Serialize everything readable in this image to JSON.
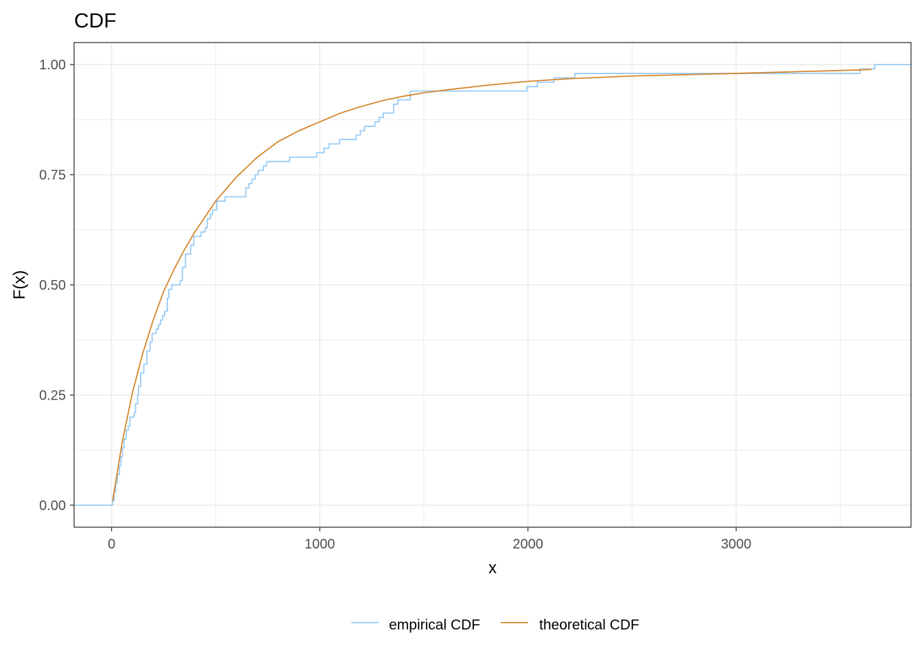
{
  "chart_data": {
    "type": "line",
    "title": "CDF",
    "xlabel": "x",
    "ylabel": "F(x)",
    "xlim": [
      -180,
      3840
    ],
    "ylim": [
      -0.05,
      1.05
    ],
    "x_ticks": [
      0,
      1000,
      2000,
      3000
    ],
    "x_tick_labels": [
      "0",
      "1000",
      "2000",
      "3000"
    ],
    "y_ticks": [
      0,
      0.25,
      0.5,
      0.75,
      1.0
    ],
    "y_tick_labels": [
      "0.00",
      "0.25",
      "0.50",
      "0.75",
      "1.00"
    ],
    "grid": true,
    "legend_position": "bottom",
    "series": [
      {
        "name": "empirical CDF",
        "color": "#99ccf5",
        "step": true,
        "points": [
          [
            -180,
            0
          ],
          [
            5,
            0.01
          ],
          [
            12,
            0.03
          ],
          [
            20,
            0.05
          ],
          [
            28,
            0.07
          ],
          [
            38,
            0.09
          ],
          [
            45,
            0.11
          ],
          [
            52,
            0.13
          ],
          [
            60,
            0.15
          ],
          [
            70,
            0.17
          ],
          [
            80,
            0.18
          ],
          [
            88,
            0.2
          ],
          [
            108,
            0.21
          ],
          [
            115,
            0.23
          ],
          [
            125,
            0.25
          ],
          [
            130,
            0.27
          ],
          [
            140,
            0.3
          ],
          [
            155,
            0.32
          ],
          [
            170,
            0.35
          ],
          [
            185,
            0.37
          ],
          [
            195,
            0.39
          ],
          [
            215,
            0.4
          ],
          [
            225,
            0.41
          ],
          [
            235,
            0.42
          ],
          [
            245,
            0.43
          ],
          [
            255,
            0.44
          ],
          [
            268,
            0.47
          ],
          [
            275,
            0.49
          ],
          [
            290,
            0.5
          ],
          [
            330,
            0.51
          ],
          [
            340,
            0.54
          ],
          [
            355,
            0.57
          ],
          [
            380,
            0.59
          ],
          [
            395,
            0.61
          ],
          [
            430,
            0.62
          ],
          [
            450,
            0.63
          ],
          [
            460,
            0.65
          ],
          [
            475,
            0.66
          ],
          [
            485,
            0.67
          ],
          [
            505,
            0.69
          ],
          [
            545,
            0.7
          ],
          [
            645,
            0.72
          ],
          [
            660,
            0.73
          ],
          [
            675,
            0.74
          ],
          [
            690,
            0.75
          ],
          [
            705,
            0.76
          ],
          [
            730,
            0.77
          ],
          [
            745,
            0.78
          ],
          [
            855,
            0.79
          ],
          [
            985,
            0.8
          ],
          [
            1020,
            0.81
          ],
          [
            1045,
            0.82
          ],
          [
            1095,
            0.83
          ],
          [
            1175,
            0.84
          ],
          [
            1195,
            0.85
          ],
          [
            1215,
            0.86
          ],
          [
            1265,
            0.87
          ],
          [
            1285,
            0.88
          ],
          [
            1305,
            0.89
          ],
          [
            1355,
            0.91
          ],
          [
            1375,
            0.92
          ],
          [
            1435,
            0.94
          ],
          [
            1995,
            0.95
          ],
          [
            2045,
            0.96
          ],
          [
            2125,
            0.97
          ],
          [
            2225,
            0.98
          ],
          [
            3595,
            0.99
          ],
          [
            3665,
            1.0
          ],
          [
            3840,
            1.0
          ]
        ]
      },
      {
        "name": "theoretical CDF",
        "color": "#d4852c",
        "step": false,
        "points": [
          [
            5,
            0.01
          ],
          [
            50,
            0.14
          ],
          [
            100,
            0.255
          ],
          [
            150,
            0.345
          ],
          [
            200,
            0.42
          ],
          [
            250,
            0.485
          ],
          [
            300,
            0.535
          ],
          [
            350,
            0.58
          ],
          [
            400,
            0.62
          ],
          [
            450,
            0.655
          ],
          [
            500,
            0.69
          ],
          [
            600,
            0.745
          ],
          [
            700,
            0.79
          ],
          [
            800,
            0.825
          ],
          [
            900,
            0.85
          ],
          [
            1000,
            0.87
          ],
          [
            1100,
            0.89
          ],
          [
            1200,
            0.905
          ],
          [
            1300,
            0.918
          ],
          [
            1400,
            0.928
          ],
          [
            1500,
            0.936
          ],
          [
            1600,
            0.942
          ],
          [
            1800,
            0.953
          ],
          [
            2000,
            0.962
          ],
          [
            2200,
            0.968
          ],
          [
            2500,
            0.974
          ],
          [
            3000,
            0.98
          ],
          [
            3300,
            0.984
          ],
          [
            3600,
            0.988
          ],
          [
            3650,
            0.989
          ]
        ]
      }
    ]
  }
}
